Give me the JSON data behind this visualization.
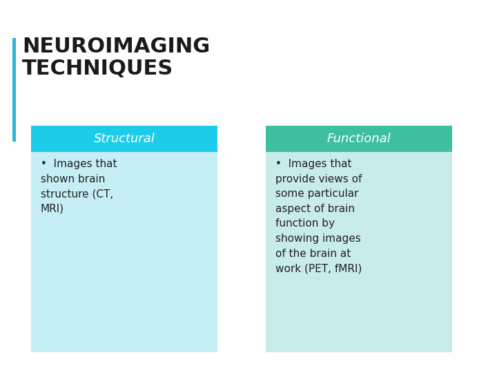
{
  "title_line1": "NEUROIMAGING",
  "title_line2": "TECHNIQUES",
  "title_color": "#1a1a1a",
  "title_bar_color": "#29b8d8",
  "background_color": "#ffffff",
  "left_header": "Structural",
  "right_header": "Functional",
  "left_header_bg": "#1dcce8",
  "right_header_bg": "#3dbfa0",
  "left_body_bg": "#c5eef5",
  "right_body_bg": "#c8ece8",
  "header_text_color": "#ffffff",
  "body_text_color": "#222222",
  "left_bullet": "Images that\nshown brain\nstructure (CT,\nMRI)",
  "right_bullet": "Images that\nprovide views of\nsome particular\naspect of brain\nfunction by\nshowing images\nof the brain at\nwork (PET, fMRI)"
}
